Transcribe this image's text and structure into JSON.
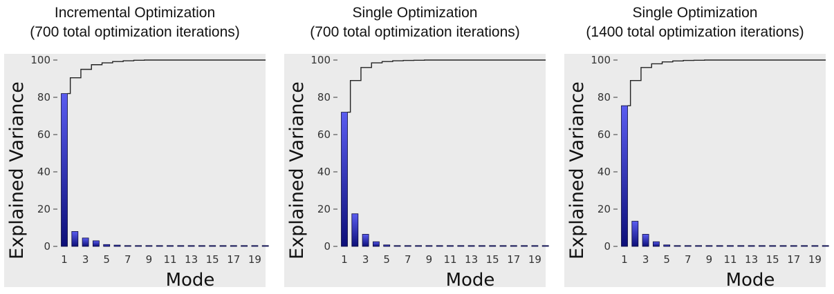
{
  "chart_data": [
    {
      "type": "bar",
      "title_line1": "Incremental Optimization",
      "title_line2": "(700 total optimization iterations)",
      "xlabel": "Mode",
      "ylabel": "Explained Variance",
      "ylim": [
        0,
        100
      ],
      "yticks": [
        "0",
        "20",
        "40",
        "60",
        "80",
        "100"
      ],
      "xticks": [
        "1",
        "3",
        "5",
        "7",
        "9",
        "11",
        "13",
        "15",
        "17",
        "19"
      ],
      "categories": [
        1,
        2,
        3,
        4,
        5,
        6,
        7,
        8,
        9,
        10,
        11,
        12,
        13,
        14,
        15,
        16,
        17,
        18,
        19,
        20
      ],
      "values": [
        82,
        8,
        4.5,
        3,
        1,
        0.7,
        0.4,
        0.3,
        0.2,
        0.2,
        0.15,
        0.1,
        0.1,
        0.1,
        0.1,
        0.1,
        0.05,
        0.05,
        0.05,
        0.05
      ],
      "cumulative": [
        82,
        90.5,
        95,
        97.5,
        98.5,
        99.2,
        99.6,
        99.9,
        100,
        100,
        100,
        100,
        100,
        100,
        100,
        100,
        100,
        100,
        100,
        100
      ]
    },
    {
      "type": "bar",
      "title_line1": "Single Optimization",
      "title_line2": "(700 total optimization iterations)",
      "xlabel": "Mode",
      "ylabel": "Explained Variance",
      "ylim": [
        0,
        100
      ],
      "yticks": [
        "0",
        "20",
        "40",
        "60",
        "80",
        "100"
      ],
      "xticks": [
        "1",
        "3",
        "5",
        "7",
        "9",
        "11",
        "13",
        "15",
        "17",
        "19"
      ],
      "categories": [
        1,
        2,
        3,
        4,
        5,
        6,
        7,
        8,
        9,
        10,
        11,
        12,
        13,
        14,
        15,
        16,
        17,
        18,
        19,
        20
      ],
      "values": [
        72,
        17.5,
        6.5,
        2.5,
        0.8,
        0.4,
        0.2,
        0.1,
        0.1,
        0.05,
        0.05,
        0.05,
        0.05,
        0.05,
        0.05,
        0.05,
        0.05,
        0.05,
        0.05,
        0.05
      ],
      "cumulative": [
        72,
        89,
        96,
        98.5,
        99.2,
        99.6,
        99.8,
        99.9,
        100,
        100,
        100,
        100,
        100,
        100,
        100,
        100,
        100,
        100,
        100,
        100
      ]
    },
    {
      "type": "bar",
      "title_line1": "Single Optimization",
      "title_line2": "(1400 total optimization iterations)",
      "xlabel": "Mode",
      "ylabel": "Explained Variance",
      "ylim": [
        0,
        100
      ],
      "yticks": [
        "0",
        "20",
        "40",
        "60",
        "80",
        "100"
      ],
      "xticks": [
        "1",
        "3",
        "5",
        "7",
        "9",
        "11",
        "13",
        "15",
        "17",
        "19"
      ],
      "categories": [
        1,
        2,
        3,
        4,
        5,
        6,
        7,
        8,
        9,
        10,
        11,
        12,
        13,
        14,
        15,
        16,
        17,
        18,
        19,
        20
      ],
      "values": [
        75.5,
        13.5,
        6.5,
        2.5,
        0.8,
        0.4,
        0.2,
        0.1,
        0.1,
        0.05,
        0.05,
        0.05,
        0.05,
        0.05,
        0.05,
        0.05,
        0.05,
        0.05,
        0.05,
        0.05
      ],
      "cumulative": [
        75.5,
        89,
        96,
        98,
        99,
        99.5,
        99.8,
        99.9,
        100,
        100,
        100,
        100,
        100,
        100,
        100,
        100,
        100,
        100,
        100,
        100
      ]
    }
  ],
  "colors": {
    "bar_top": "#5a5cf0",
    "bar_bottom": "#0d0f78",
    "plot_bg": "#ebebeb",
    "line": "#222222"
  }
}
